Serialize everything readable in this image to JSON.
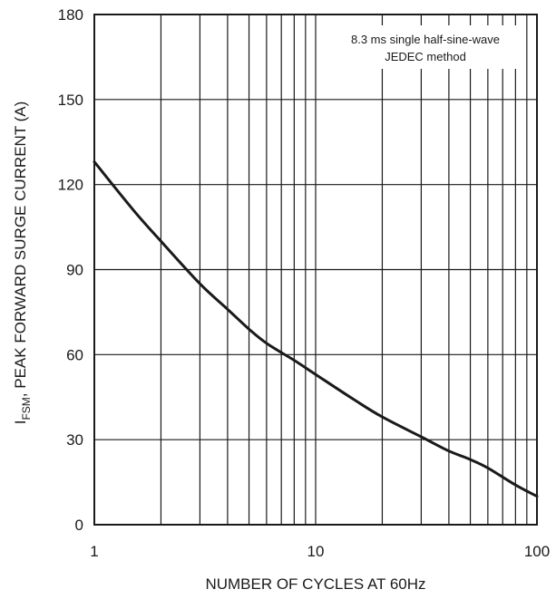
{
  "chart_data": {
    "type": "line",
    "xscale": "log",
    "xlim": [
      1,
      100
    ],
    "ylim": [
      0,
      180
    ],
    "xticks": [
      1,
      10,
      100
    ],
    "yticks": [
      0,
      30,
      60,
      90,
      120,
      150,
      180
    ],
    "xlabel": "NUMBER OF CYCLES AT 60Hz",
    "ylabel": {
      "prefix": "I",
      "subscript": "FSM",
      "suffix": ", PEAK FORWARD SURGE CURRENT (A)"
    },
    "annotation": [
      "8.3 ms single half-sine-wave",
      "JEDEC method"
    ],
    "grid": true,
    "series": [
      {
        "x": [
          1,
          1.5,
          2,
          3,
          4,
          5,
          6,
          8,
          10,
          15,
          20,
          30,
          40,
          50,
          60,
          80,
          100
        ],
        "y": [
          128,
          111,
          100,
          85,
          76,
          69,
          64,
          58,
          53,
          44,
          38,
          31,
          26,
          23,
          20,
          14,
          10
        ]
      }
    ]
  }
}
